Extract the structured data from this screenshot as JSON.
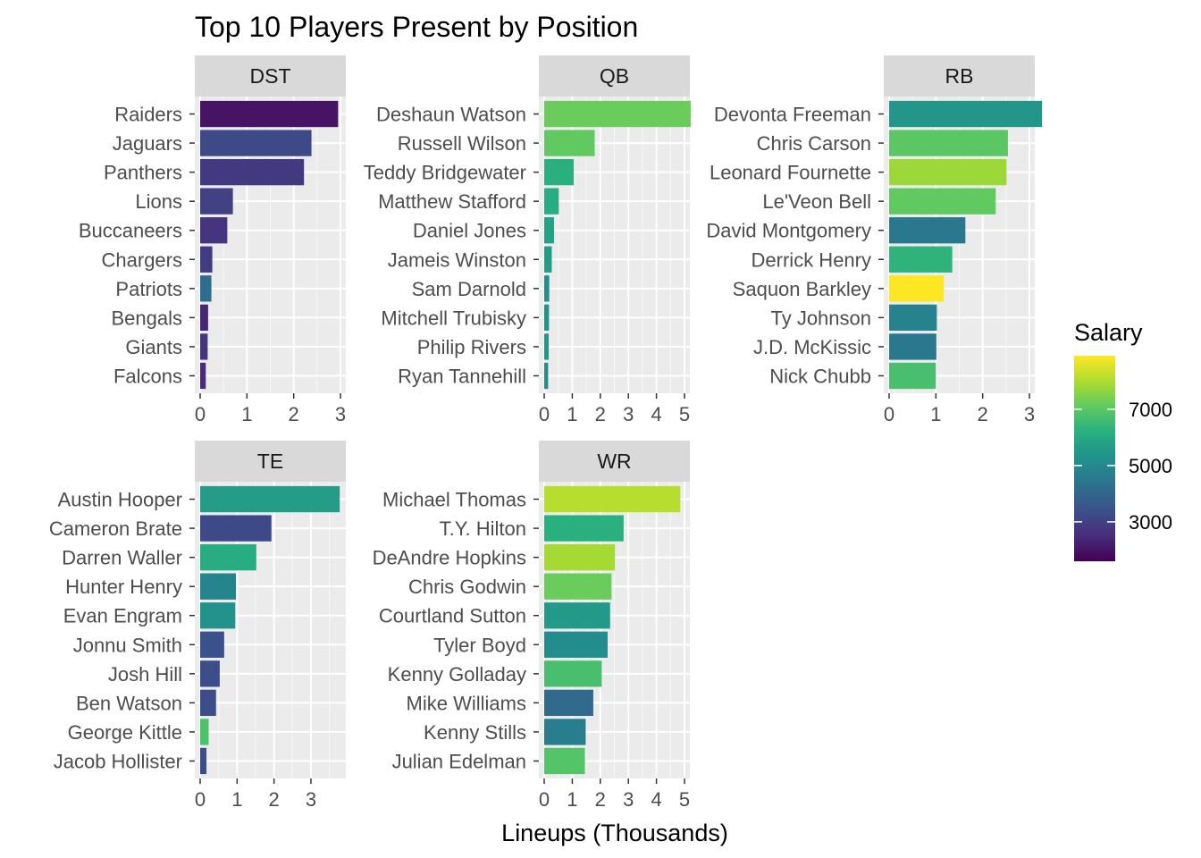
{
  "chart_data": {
    "type": "bar",
    "orientation": "horizontal",
    "title": "Top 10 Players Present by Position",
    "xlabel": "Lineups (Thousands)",
    "ylabel": "",
    "grid": true,
    "legend_position": "right",
    "legend": {
      "title": "Salary",
      "ticks": [
        3000,
        5000,
        7000
      ],
      "range": [
        1600,
        8900
      ],
      "colormap": "viridis"
    },
    "panels": [
      {
        "facet": "DST",
        "xlim": [
          0,
          3
        ],
        "xticks": [
          0,
          1,
          2,
          3
        ],
        "categories": [
          "Raiders",
          "Jaguars",
          "Panthers",
          "Lions",
          "Buccaneers",
          "Chargers",
          "Patriots",
          "Bengals",
          "Giants",
          "Falcons"
        ],
        "values": [
          2.95,
          2.38,
          2.22,
          0.7,
          0.58,
          0.26,
          0.24,
          0.17,
          0.16,
          0.12
        ],
        "salary": [
          2000,
          3200,
          2800,
          3000,
          2700,
          2900,
          4200,
          2400,
          2700,
          2500
        ]
      },
      {
        "facet": "QB",
        "xlim": [
          0,
          5
        ],
        "xticks": [
          0,
          1,
          2,
          3,
          4,
          5
        ],
        "categories": [
          "Deshaun Watson",
          "Russell Wilson",
          "Teddy Bridgewater",
          "Matthew Stafford",
          "Daniel Jones",
          "Jameis Winston",
          "Sam Darnold",
          "Mitchell Trubisky",
          "Philip Rivers",
          "Ryan Tannehill"
        ],
        "values": [
          5.22,
          1.8,
          1.05,
          0.52,
          0.35,
          0.27,
          0.18,
          0.17,
          0.16,
          0.14
        ],
        "salary": [
          7200,
          7100,
          6200,
          6100,
          5800,
          5600,
          5200,
          5300,
          5400,
          5100
        ]
      },
      {
        "facet": "RB",
        "xlim": [
          0,
          3
        ],
        "xticks": [
          0,
          1,
          2,
          3
        ],
        "categories": [
          "Devonta Freeman",
          "Chris Carson",
          "Leonard Fournette",
          "Le'Veon Bell",
          "David Montgomery",
          "Derrick Henry",
          "Saquon Barkley",
          "Ty Johnson",
          "J.D. McKissic",
          "Nick Chubb"
        ],
        "values": [
          3.27,
          2.54,
          2.51,
          2.28,
          1.63,
          1.35,
          1.17,
          1.02,
          1.01,
          1.0
        ],
        "salary": [
          5400,
          7000,
          7800,
          7100,
          4500,
          6300,
          8900,
          4800,
          4500,
          6700
        ]
      },
      {
        "facet": "TE",
        "xlim": [
          0,
          3.8
        ],
        "xticks": [
          0,
          1,
          2,
          3
        ],
        "categories": [
          "Austin Hooper",
          "Cameron Brate",
          "Darren Waller",
          "Hunter Henry",
          "Evan Engram",
          "Jonnu Smith",
          "Josh Hill",
          "Ben Watson",
          "George Kittle",
          "Jacob Hollister"
        ],
        "values": [
          3.78,
          1.93,
          1.52,
          0.97,
          0.95,
          0.65,
          0.53,
          0.43,
          0.23,
          0.17
        ],
        "salary": [
          5600,
          3200,
          6100,
          4900,
          5300,
          3400,
          3300,
          3300,
          6800,
          3300
        ]
      },
      {
        "facet": "WR",
        "xlim": [
          0,
          5
        ],
        "xticks": [
          0,
          1,
          2,
          3,
          4,
          5
        ],
        "categories": [
          "Michael Thomas",
          "T.Y. Hilton",
          "DeAndre Hopkins",
          "Chris Godwin",
          "Courtland Sutton",
          "Tyler Boyd",
          "Kenny Golladay",
          "Mike Williams",
          "Kenny Stills",
          "Julian Edelman"
        ],
        "values": [
          4.85,
          2.83,
          2.52,
          2.4,
          2.35,
          2.26,
          2.05,
          1.75,
          1.48,
          1.45
        ],
        "salary": [
          8100,
          6200,
          7900,
          7200,
          5500,
          5100,
          6700,
          4100,
          4700,
          6900
        ]
      }
    ]
  }
}
